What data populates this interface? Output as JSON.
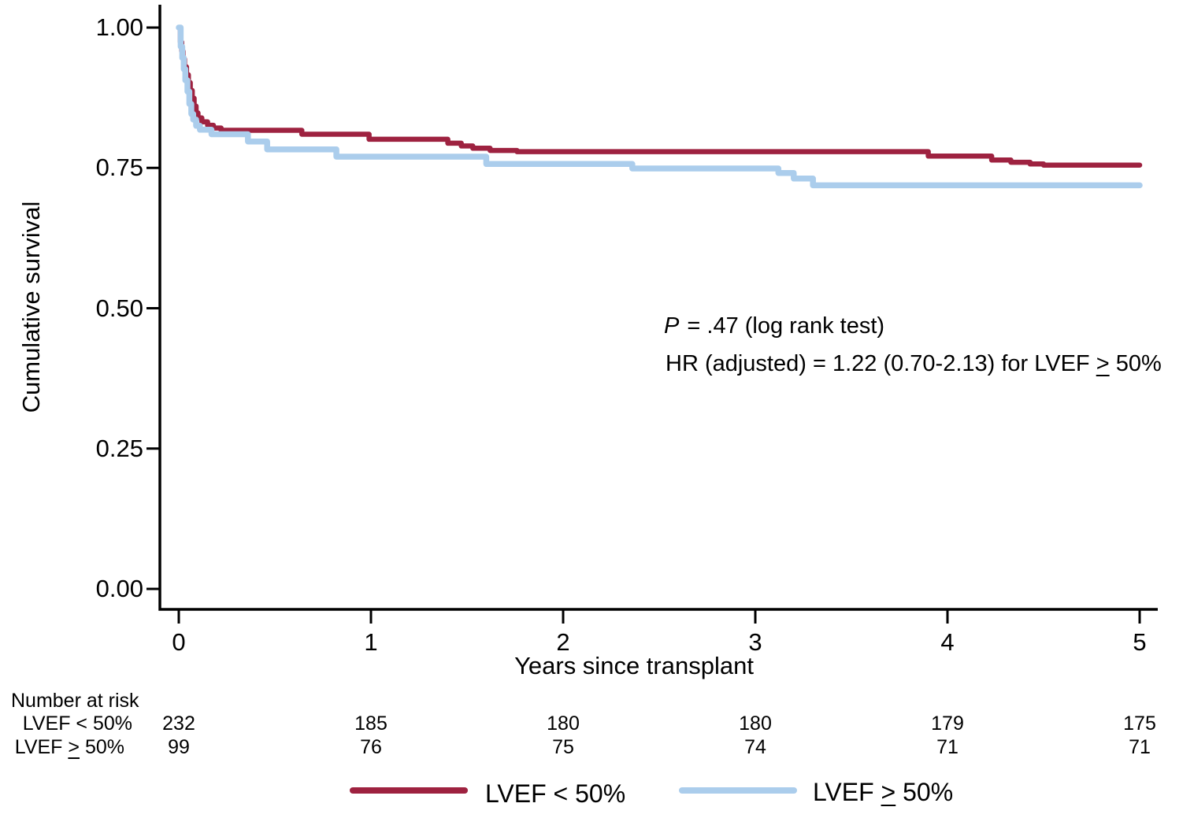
{
  "chart_data": {
    "type": "line",
    "subtype": "kaplan-meier-step",
    "title": "",
    "xlabel": "Years since transplant",
    "ylabel": "Cumulative survival",
    "xlim": [
      0,
      5
    ],
    "ylim": [
      0.0,
      1.0
    ],
    "grid": false,
    "legend_position": "bottom",
    "x_ticks": [
      0,
      1,
      2,
      3,
      4,
      5
    ],
    "x_tick_labels": [
      "0",
      "1",
      "2",
      "3",
      "4",
      "5"
    ],
    "y_ticks": [
      1.0,
      0.75,
      0.5,
      0.25,
      0.0
    ],
    "y_tick_labels": [
      "1.00",
      "0.75",
      "0.50",
      "0.25",
      "0.00"
    ],
    "series": [
      {
        "name": "LVEF < 50%",
        "color": "#9E2240",
        "points": [
          [
            0,
            1.0
          ],
          [
            0.008,
            0.974
          ],
          [
            0.015,
            0.958
          ],
          [
            0.022,
            0.944
          ],
          [
            0.03,
            0.93
          ],
          [
            0.04,
            0.916
          ],
          [
            0.05,
            0.902
          ],
          [
            0.06,
            0.888
          ],
          [
            0.07,
            0.874
          ],
          [
            0.08,
            0.86
          ],
          [
            0.09,
            0.848
          ],
          [
            0.1,
            0.839
          ],
          [
            0.12,
            0.832
          ],
          [
            0.15,
            0.826
          ],
          [
            0.18,
            0.821
          ],
          [
            0.22,
            0.817
          ],
          [
            0.64,
            0.81
          ],
          [
            0.99,
            0.801
          ],
          [
            1.4,
            0.794
          ],
          [
            1.47,
            0.789
          ],
          [
            1.53,
            0.785
          ],
          [
            1.62,
            0.781
          ],
          [
            1.76,
            0.779
          ],
          [
            3.9,
            0.771
          ],
          [
            4.23,
            0.764
          ],
          [
            4.33,
            0.76
          ],
          [
            4.43,
            0.757
          ],
          [
            4.5,
            0.755
          ],
          [
            5.0,
            0.755
          ]
        ]
      },
      {
        "name": "LVEF ≥ 50%",
        "color": "#ABCDEC",
        "points": [
          [
            0,
            1.0
          ],
          [
            0.01,
            0.966
          ],
          [
            0.018,
            0.946
          ],
          [
            0.026,
            0.926
          ],
          [
            0.034,
            0.906
          ],
          [
            0.045,
            0.886
          ],
          [
            0.055,
            0.864
          ],
          [
            0.065,
            0.846
          ],
          [
            0.075,
            0.836
          ],
          [
            0.09,
            0.825
          ],
          [
            0.11,
            0.818
          ],
          [
            0.17,
            0.81
          ],
          [
            0.36,
            0.797
          ],
          [
            0.46,
            0.783
          ],
          [
            0.82,
            0.77
          ],
          [
            1.6,
            0.757
          ],
          [
            2.36,
            0.749
          ],
          [
            3.12,
            0.741
          ],
          [
            3.2,
            0.731
          ],
          [
            3.3,
            0.719
          ],
          [
            5.0,
            0.719
          ]
        ]
      }
    ]
  },
  "annotation": {
    "line1_italic": "P",
    "line1_rest": " = .47 (log rank test)",
    "line2_pre": "HR (adjusted) = 1.22 (0.70-2.13) for LVEF ",
    "line2_symbol": ">",
    "line2_post": " 50%"
  },
  "risk_table": {
    "header": "Number at risk",
    "times": [
      0,
      1,
      2,
      3,
      4,
      5
    ],
    "rows": [
      {
        "label": "LVEF < 50%",
        "values": [
          "232",
          "185",
          "180",
          "180",
          "179",
          "175"
        ]
      },
      {
        "label_pre": "LVEF ",
        "label_symbol": ">",
        "label_post": " 50%",
        "values": [
          "99",
          "76",
          "75",
          "74",
          "71",
          "71"
        ]
      }
    ]
  },
  "legend": {
    "entries": [
      {
        "label": "LVEF < 50%",
        "color": "#9E2240"
      },
      {
        "label_pre": "LVEF ",
        "label_symbol": ">",
        "label_post": " 50%",
        "color": "#ABCDEC"
      }
    ]
  }
}
